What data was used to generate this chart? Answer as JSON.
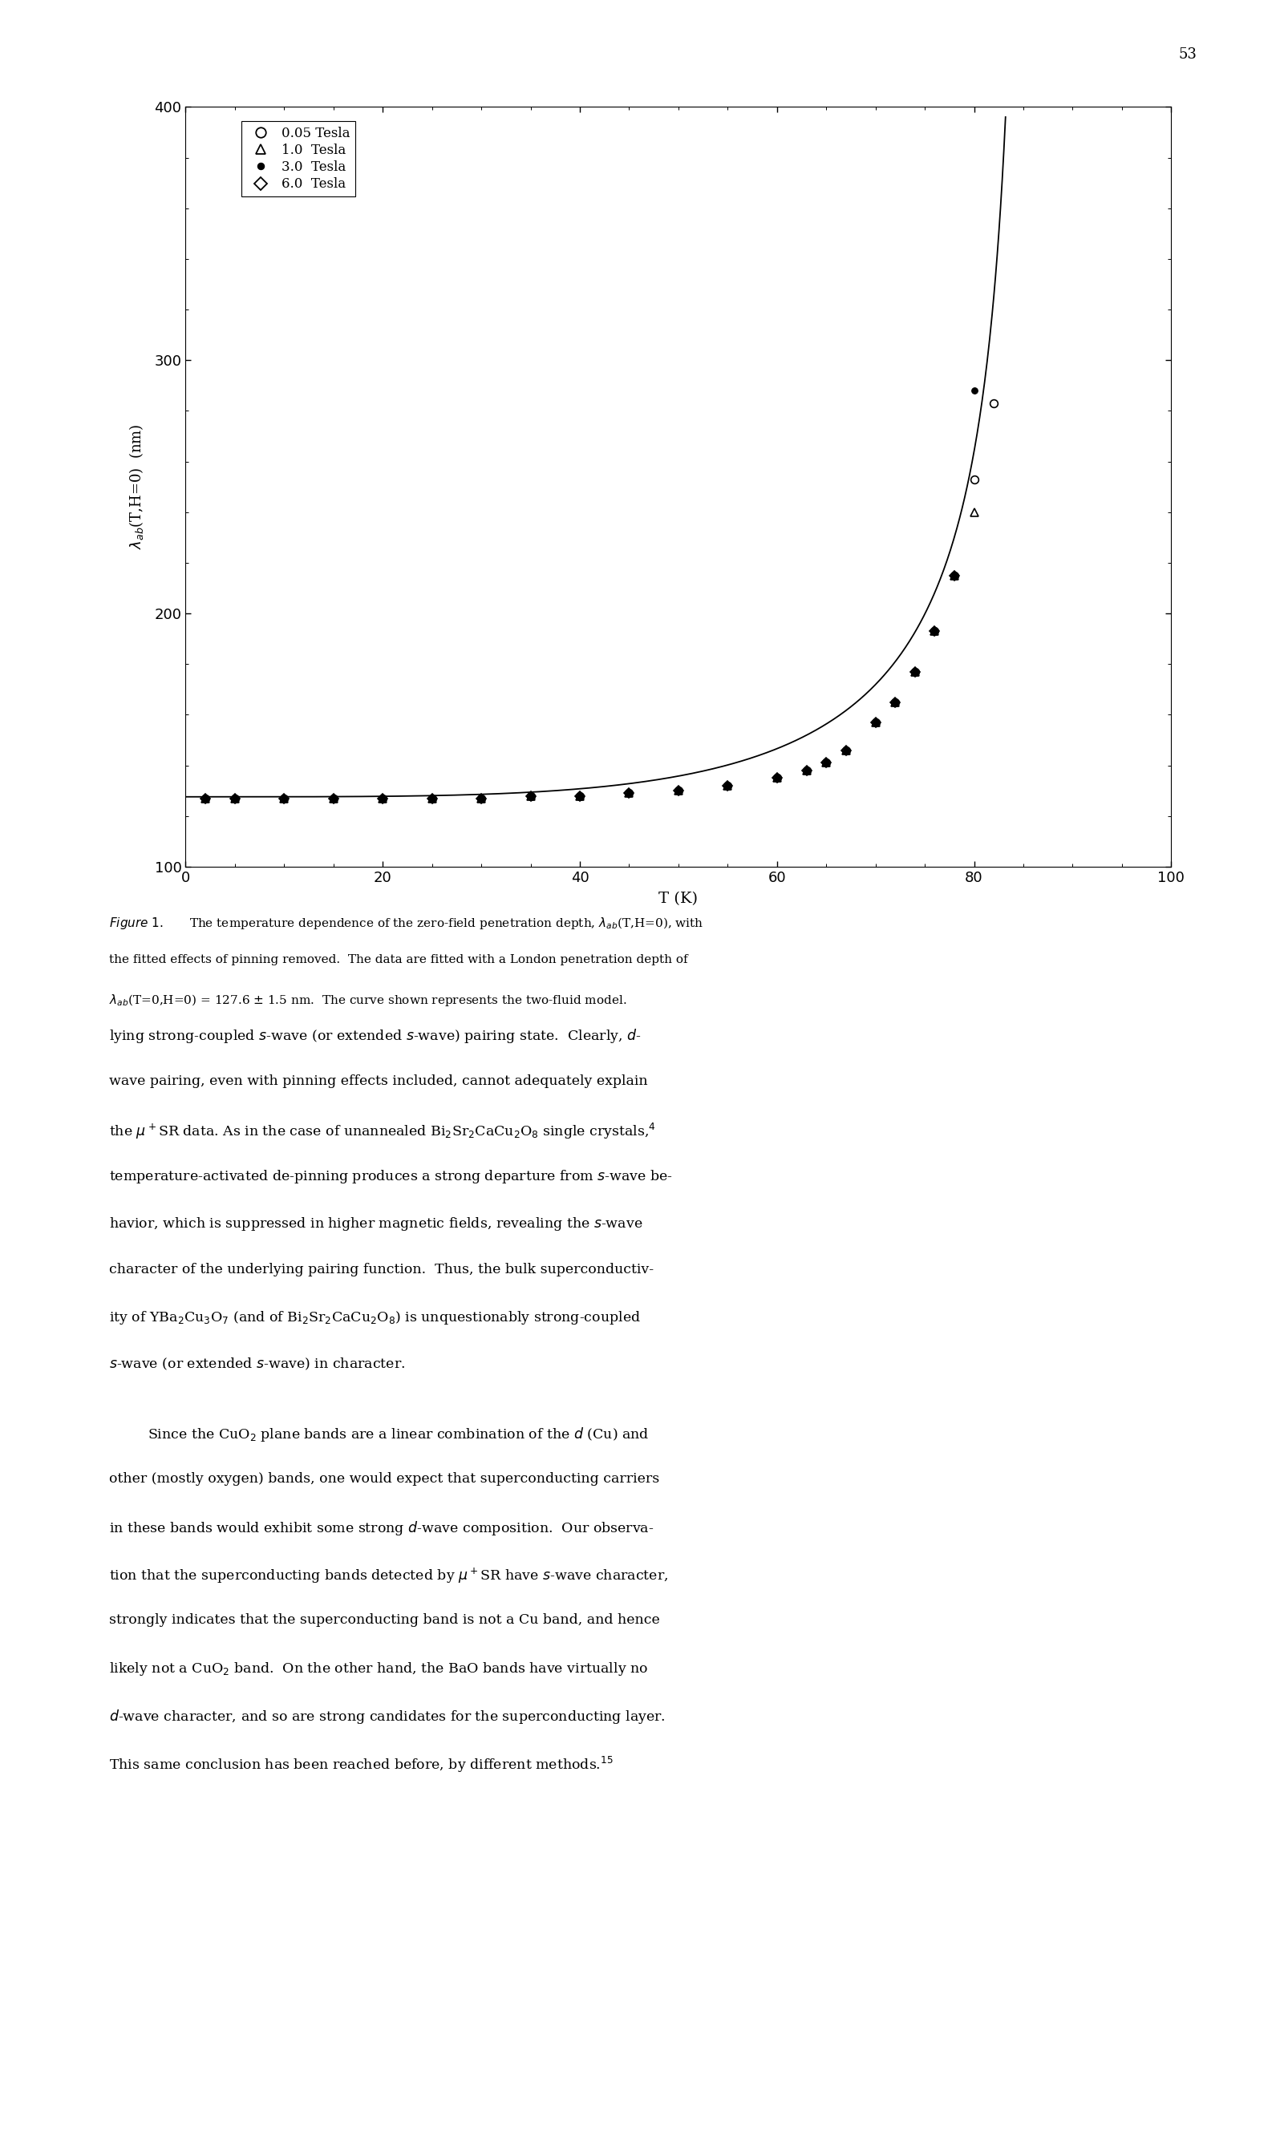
{
  "title": "",
  "xlabel": "T (K)",
  "xlim": [
    0,
    100
  ],
  "ylim": [
    100,
    400
  ],
  "yticks": [
    100,
    200,
    300,
    400
  ],
  "xticks": [
    0,
    20,
    40,
    60,
    80,
    100
  ],
  "background": "#ffffff",
  "Tc": 85.5,
  "lambda0": 127.6,
  "data_0p05": {
    "T": [
      2,
      5,
      10,
      15,
      20,
      25,
      30,
      35,
      40,
      45,
      50,
      55,
      60,
      63,
      65,
      67,
      70,
      72,
      74,
      76,
      78,
      80,
      82
    ],
    "lam": [
      127,
      127,
      127,
      127,
      127,
      127,
      127,
      128,
      128,
      129,
      130,
      132,
      135,
      138,
      141,
      146,
      157,
      165,
      177,
      193,
      215,
      253,
      283
    ]
  },
  "data_1p0": {
    "T": [
      2,
      5,
      10,
      15,
      20,
      25,
      30,
      35,
      40,
      45,
      50,
      55,
      60,
      63,
      65,
      67,
      70,
      72,
      74,
      76,
      78,
      80
    ],
    "lam": [
      127,
      127,
      127,
      127,
      127,
      127,
      127,
      128,
      128,
      129,
      130,
      132,
      135,
      138,
      141,
      146,
      157,
      165,
      177,
      193,
      215,
      240
    ]
  },
  "data_3p0": {
    "T": [
      2,
      5,
      10,
      15,
      20,
      25,
      30,
      35,
      40,
      45,
      50,
      55,
      60,
      63,
      65,
      67,
      70,
      72,
      74,
      76,
      78,
      80
    ],
    "lam": [
      127,
      127,
      127,
      127,
      127,
      127,
      127,
      128,
      128,
      129,
      130,
      132,
      135,
      138,
      141,
      146,
      157,
      165,
      177,
      193,
      215,
      288
    ]
  },
  "data_6p0": {
    "T": [
      2,
      5,
      10,
      15,
      20,
      25,
      30,
      35,
      40,
      45,
      50,
      55,
      60,
      63,
      65,
      67,
      70,
      72,
      74,
      76,
      78
    ],
    "lam": [
      127,
      127,
      127,
      127,
      127,
      127,
      127,
      128,
      128,
      129,
      130,
      132,
      135,
      138,
      141,
      146,
      157,
      165,
      177,
      193,
      215
    ]
  },
  "page_number": "53"
}
